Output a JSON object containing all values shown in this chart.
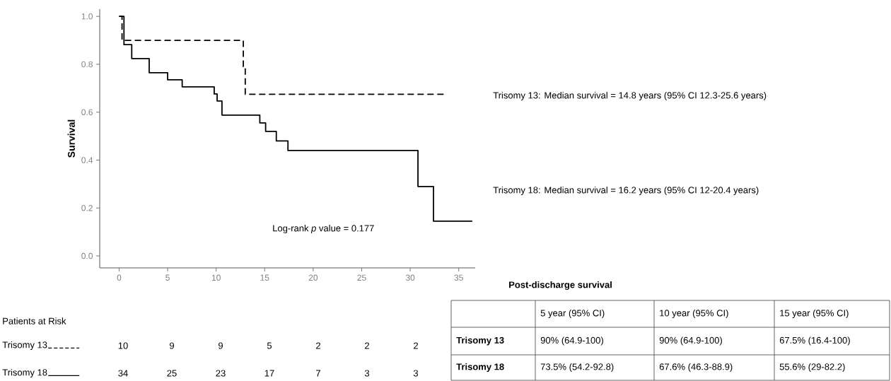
{
  "chart_data": {
    "type": "step",
    "ylabel": "Survival",
    "series": [
      {
        "name": "Trisomy 13",
        "color": "#000000",
        "line_style": "dashed",
        "x": [
          0,
          0.3,
          12.8,
          13.0,
          33.6
        ],
        "values": [
          1.0,
          0.9,
          0.79,
          0.675,
          0.675
        ]
      },
      {
        "name": "Trisomy 18",
        "color": "#000000",
        "line_style": "solid",
        "x": [
          0,
          0.5,
          1.3,
          3.1,
          5.0,
          6.5,
          9.8,
          10.1,
          10.6,
          14.5,
          15.1,
          16.2,
          17.4,
          30.8,
          32.4,
          36.4
        ],
        "values": [
          1.0,
          0.882,
          0.824,
          0.765,
          0.735,
          0.706,
          0.676,
          0.647,
          0.588,
          0.555,
          0.52,
          0.48,
          0.44,
          0.29,
          0.145,
          0.145
        ]
      }
    ],
    "xlim": [
      -2,
      36.7
    ],
    "ylim": [
      -0.05,
      1.03
    ],
    "xticks": [
      0,
      5,
      10,
      15,
      20,
      25,
      30,
      35
    ],
    "yticks": [
      {
        "value": 0,
        "label": "0.0"
      },
      {
        "value": 0.2,
        "label": "0.2"
      },
      {
        "value": 0.4,
        "label": "0.4"
      },
      {
        "value": 0.6,
        "label": "0.6"
      },
      {
        "value": 0.8,
        "label": "0.8"
      },
      {
        "value": 1.0,
        "label": "1.0"
      }
    ],
    "grid": false,
    "legend": "bottom left",
    "annotations": [
      "Trisomy 13: Median survival = 14.8 years (95% CI 12.3-25.6 years)",
      "Trisomy 18: Median survival = 16.2 years (95% CI 12-20.4 years)",
      "Log-rank *p* value = 0.177",
      "Patients at Risk",
      "10",
      "9",
      "9",
      "5",
      "2",
      "2",
      "2",
      "34",
      "25",
      "23",
      "17",
      "7",
      "3",
      "3",
      "Post-discharge survival",
      "5 year (95% CI)",
      "10 year (95% CI)",
      "15 year (95% CI)",
      "Trisomy 13",
      "90% (64.9-100)",
      "90% (64.9-100)",
      "67.5% (16.4-100)",
      "Trisomy 18",
      "73.5% (54.2-92.8)",
      "67.6% (46.3-88.9)",
      "55.6% (29-82.2)"
    ]
  }
}
